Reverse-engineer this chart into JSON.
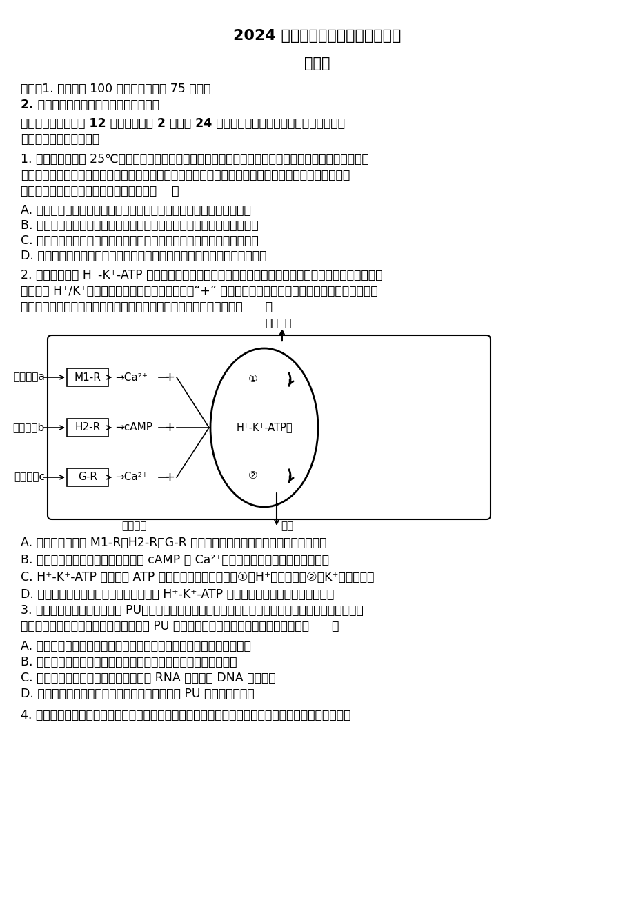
{
  "bg_color": "#ffffff",
  "title1": "2024 年江西省高三教学质量监测卷",
  "title2": "生物学",
  "instr1": "说明：1. 全卷满分 100 分，考试时间为 75 分钟。",
  "instr2": "2. 请将答案写在答题卡上，否则不给分。",
  "section_line1": "一、选择题：本题共 12 小题，每小题 2 分，共 24 分。在每小题给出的四个选项中，只有一",
  "section_line2": "项是最符合题目要求的。",
  "q1_line1": "1. 将大豆种子置于 25℃、黑暗、无菌、湿润的条件下萍发，测定在不同时间种子和幼苗中相关物质的含",
  "q1_line2": "量变化为：可溶性糖（主要是葡萄糖）含量的变化是先增加后保持稳定，总糖含量变化是下降，蛋白质含",
  "q1_line3": "量的变化是增加。下列相关叙述正确的是（    ）",
  "q1_A": "A. 由测定的萍发种子中各物质含量变化可知，糖类和蛋白质可相互转化",
  "q1_B": "B. 萍发种子细胞中的可溶性糖经氧化分解，释放的能量可用于蛋白质合成",
  "q1_C": "C. 检测萍发种子蛋白质含量变化的原理是蛋白质与双缩脺试剂反应呜紫色",
  "q1_D": "D. 葡萄糖含量稳定是因为转化形成的葡萄糖量与线粒体分解的葡萄糖量相等",
  "q2_line1": "2. 胃壁细胞上的 H⁺-K⁺-ATP 醂对胃的消化功能有重要作用，它是一种质子泵，通过自身的磷酸化与去磷",
  "q2_line2": "酸化完成 H⁺/K⁺跨膜转运，其作用机理如图所示（“+” 表示促进磷酸化）。药物奥美拉唤是一种质子泵抑",
  "q2_line3": "制剂，能有效减缓因胃酸分泌过多引起的胃溏疗，下列叙述错误的是（      ）",
  "q2_A": "A. 胃蛋白醂不能将 M1-R、H2-R、G-R 水解，可能的原因是这些蛋白质已经被修饰",
  "q2_B": "B. 信号分子和不同受体结合后，通过 cAMP 和 Ca²⁺促进磷酸化，从而促进胃酸的分泌",
  "q2_C": "C. H⁺-K⁺-ATP 醂能催化 ATP 水解为主动运输供能，将①（H⁺）运入细胞②（K⁺）运出细胞",
  "q2_D": "D. 奥美拉唤治疗胃溏疗的机理可能是抑制 H⁺-K⁺-ATP 醂的活性，减少胃壁细胞分泌胃酸",
  "q3_line1": "3. 塔宾曲隒菌分泌的降解醂对 PU（聚氨基甲酸酯，一类塑料）有生物降解作用，一类没有被命名的细菌",
  "q3_line2": "（暂叫塑料分解菌）也能分泌降解醂，对 PU 有生物降解作用。下列有关叙述正确的是（      ）",
  "q3_A": "A. 塔宾曲隒菌和塑料分解菌分泌分裂时均发生染色质形成染色体的变化",
  "q3_B": "B. 塔宾曲隒菌和塑料分解菌降解醂时都需要内质网和高尔基体加工",
  "q3_C": "C. 塔宾曲隒菌和塑料分解菌内都会发生 RNA 聚合醂和 DNA 链的结合",
  "q3_D": "D. 塔宾曲隒菌和塑料分解菌分泌的降解醂都能为 PU 的降解提供能量",
  "q4_text": "4. 灰体与黑檘体、长翅与残翅、红眼与白眼为某果蝶品系的三对相对性状。灰体长翅红眼雌果蝶与灰体"
}
